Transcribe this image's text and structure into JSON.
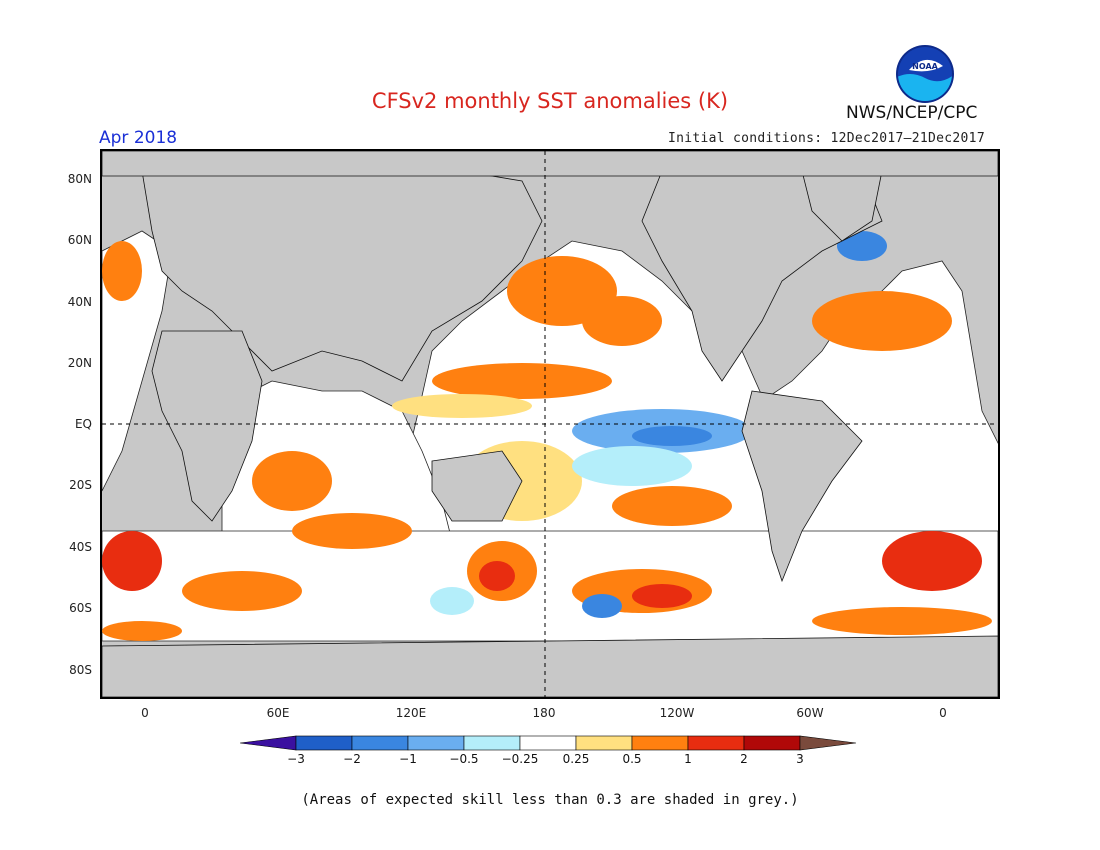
{
  "title": "CFSv2 monthly SST anomalies (K)",
  "valid_month": "Apr 2018",
  "initial_conditions": "Initial conditions: 12Dec2017–21Dec2017",
  "agency": "NWS/NCEP/CPC",
  "logo_text": "NOAA",
  "lat_labels": [
    "80N",
    "60N",
    "40N",
    "20N",
    "EQ",
    "20S",
    "40S",
    "60S",
    "80S"
  ],
  "lon_labels": [
    "0",
    "60E",
    "120E",
    "180",
    "120W",
    "60W",
    "0"
  ],
  "colorbar": {
    "labels": [
      "−3",
      "−2",
      "−1",
      "−0.5",
      "−0.25",
      "0.25",
      "0.5",
      "1",
      "2",
      "3"
    ],
    "colors": [
      "#3a10a0",
      "#1f5fc8",
      "#3a86e0",
      "#6aaef0",
      "#b4eefa",
      "#ffffff",
      "#ffe080",
      "#ff8010",
      "#e82d10",
      "#b00808",
      "#7a4a3c"
    ]
  },
  "footnote": "(Areas of expected skill less than 0.3 are shaded in grey.)",
  "colors": {
    "land": "#c8c8c8",
    "title": "#d8261f",
    "month": "#1a2fd6"
  }
}
